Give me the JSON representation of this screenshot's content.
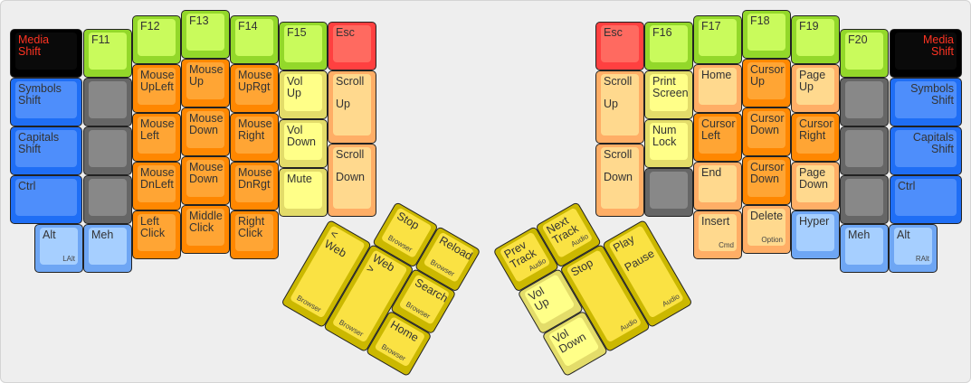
{
  "colors": {
    "green": [
      "#93d82a",
      "#c9fb5c"
    ],
    "orange": [
      "#ff8700",
      "#ffa534"
    ],
    "lorange": [
      "#ffae66",
      "#ffd98e"
    ],
    "pale": [
      "#e3dc6a",
      "#ffff88"
    ],
    "red": [
      "#ff4040",
      "#ff6a60"
    ],
    "black": [
      "#000000",
      "#0a0a0a"
    ],
    "blue": [
      "#1f6ef5",
      "#4e8efb"
    ],
    "lblue": [
      "#6ea6f4",
      "#a6cfff"
    ],
    "grey": [
      "#666666",
      "#888888"
    ],
    "thumb": [
      "#cbb800",
      "#fae243"
    ],
    "media_text": "#ff3322"
  },
  "left_keys": [
    {
      "label": "Media\nShift",
      "color": "black"
    },
    {
      "label": "Symbols\nShift",
      "color": "blue"
    },
    {
      "label": "Capitals\nShift",
      "color": "blue"
    },
    {
      "label": "Ctrl",
      "color": "blue"
    },
    {
      "label": "Alt",
      "sub": "LAlt",
      "color": "lblue"
    },
    {
      "label": "F11",
      "color": "green"
    },
    {
      "label": "",
      "color": "grey"
    },
    {
      "label": "",
      "color": "grey"
    },
    {
      "label": "",
      "color": "grey"
    },
    {
      "label": "Meh",
      "color": "lblue"
    },
    {
      "label": "F12",
      "color": "green"
    },
    {
      "label": "Mouse\nUpLeft",
      "color": "orange"
    },
    {
      "label": "Mouse\nLeft",
      "color": "orange"
    },
    {
      "label": "Mouse\nDnLeft",
      "color": "orange"
    },
    {
      "label": "Left\nClick",
      "color": "orange"
    },
    {
      "label": "F13",
      "color": "green"
    },
    {
      "label": "Mouse\nUp",
      "color": "orange"
    },
    {
      "label": "Mouse\nDown",
      "color": "orange"
    },
    {
      "label": "Mouse\nDown",
      "color": "orange"
    },
    {
      "label": "Middle\nClick",
      "color": "orange"
    },
    {
      "label": "F14",
      "color": "green"
    },
    {
      "label": "Mouse\nUpRgt",
      "color": "orange"
    },
    {
      "label": "Mouse\nRight",
      "color": "orange"
    },
    {
      "label": "Mouse\nDnRgt",
      "color": "orange"
    },
    {
      "label": "Right\nClick",
      "color": "orange"
    },
    {
      "label": "F15",
      "color": "green"
    },
    {
      "label": "Vol\nUp",
      "color": "pale"
    },
    {
      "label": "Vol\nDown",
      "color": "pale"
    },
    {
      "label": "Mute",
      "color": "pale"
    },
    {
      "label": "Esc",
      "color": "red"
    },
    {
      "label": "Scroll\n\nUp",
      "color": "lorange"
    },
    {
      "label": "Scroll\n\nDown",
      "color": "lorange"
    }
  ],
  "right_keys": [
    {
      "label": "Media\nShift",
      "color": "black"
    },
    {
      "label": "Symbols\nShift",
      "color": "blue"
    },
    {
      "label": "Capitals\nShift",
      "color": "blue"
    },
    {
      "label": "Ctrl",
      "color": "blue"
    },
    {
      "label": "Alt",
      "sub": "RAlt",
      "color": "lblue"
    },
    {
      "label": "F20",
      "color": "green"
    },
    {
      "label": "",
      "color": "grey"
    },
    {
      "label": "",
      "color": "grey"
    },
    {
      "label": "",
      "color": "grey"
    },
    {
      "label": "Meh",
      "color": "lblue"
    },
    {
      "label": "F19",
      "color": "green"
    },
    {
      "label": "Page\nUp",
      "color": "lorange"
    },
    {
      "label": "Cursor\nRight",
      "color": "orange"
    },
    {
      "label": "Page\nDown",
      "color": "lorange"
    },
    {
      "label": "Hyper",
      "color": "lblue"
    },
    {
      "label": "F18",
      "color": "green"
    },
    {
      "label": "Cursor\nUp",
      "color": "orange"
    },
    {
      "label": "Cursor\nDown",
      "color": "orange"
    },
    {
      "label": "Cursor\nDown",
      "color": "orange"
    },
    {
      "label": "Delete",
      "sub": "Option",
      "color": "lorange"
    },
    {
      "label": "F17",
      "color": "green"
    },
    {
      "label": "Home",
      "color": "lorange"
    },
    {
      "label": "Cursor\nLeft",
      "color": "orange"
    },
    {
      "label": "End",
      "color": "lorange"
    },
    {
      "label": "Insert",
      "sub": "Cmd",
      "color": "lorange"
    },
    {
      "label": "F16",
      "color": "green"
    },
    {
      "label": "Print\nScreen",
      "color": "pale"
    },
    {
      "label": "Num\nLock",
      "color": "pale"
    },
    {
      "label": "",
      "color": "grey"
    },
    {
      "label": "Esc",
      "color": "red"
    },
    {
      "label": "Scroll\n\nUp",
      "color": "lorange"
    },
    {
      "label": "Scroll\n\nDown",
      "color": "lorange"
    }
  ],
  "left_thumb": [
    {
      "label": "Stop",
      "sub": "Browser",
      "color": "thumb"
    },
    {
      "label": "Reload",
      "sub": "Browser",
      "color": "thumb"
    },
    {
      "label": "< Web",
      "sub": "Browser",
      "color": "thumb"
    },
    {
      "label": "Web >",
      "sub": "Browser",
      "color": "thumb"
    },
    {
      "label": "Search",
      "sub": "Browser",
      "color": "thumb"
    },
    {
      "label": "Home",
      "sub": "Browser",
      "color": "thumb"
    }
  ],
  "right_thumb": [
    {
      "label": "Prev\nTrack",
      "sub": "Audio",
      "color": "thumb"
    },
    {
      "label": "Next\nTrack",
      "sub": "Audio",
      "color": "thumb"
    },
    {
      "label": "Vol\nUp",
      "color": "pale"
    },
    {
      "label": "Vol\nDown",
      "color": "pale"
    },
    {
      "label": "Stop",
      "sub": "Audio",
      "color": "thumb"
    },
    {
      "label": "Play\n\nPause",
      "sub": "Audio",
      "color": "thumb"
    }
  ]
}
